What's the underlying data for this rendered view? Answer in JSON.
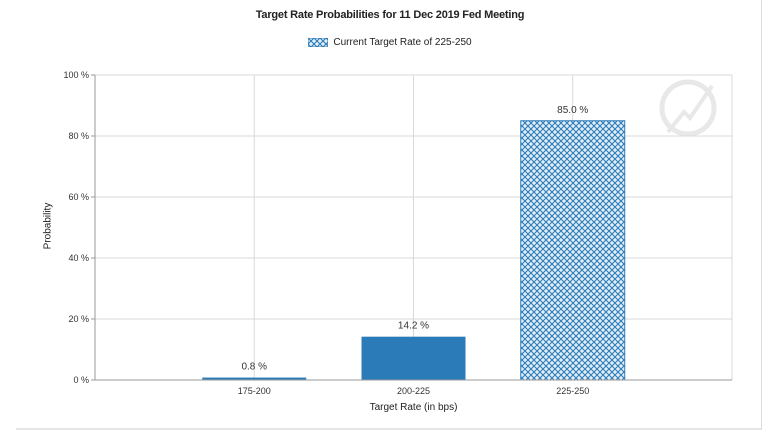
{
  "chart_data": {
    "type": "bar",
    "title": "Target Rate Probabilities for 11 Dec 2019 Fed Meeting",
    "xlabel": "Target Rate (in bps)",
    "ylabel": "Probability",
    "categories": [
      "175-200",
      "200-225",
      "225-250"
    ],
    "values": [
      0.8,
      14.2,
      85.0
    ],
    "data_labels": [
      "0.8 %",
      "14.2 %",
      "85.0 %"
    ],
    "ylim": [
      0,
      100
    ],
    "yticks": [
      0,
      20,
      40,
      60,
      80,
      100
    ],
    "ytick_labels": [
      "0 %",
      "20 %",
      "40 %",
      "60 %",
      "80 %",
      "100 %"
    ],
    "grid": true,
    "legend": {
      "position": "top-center",
      "entries": [
        {
          "label": "Current Target Rate of 225-250",
          "style": "crosshatch"
        }
      ]
    },
    "highlighted_category": "225-250",
    "colors": {
      "bar": "#2b7bb9",
      "bar_light": "#e3eef7",
      "grid": "#d9d9d9",
      "axis": "#9a9a9a",
      "watermark": "#e8e8e8"
    }
  }
}
